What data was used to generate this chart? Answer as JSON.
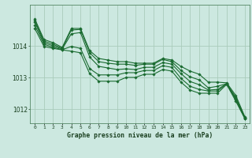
{
  "title": "Graphe pression niveau de la mer (hPa)",
  "bg_color": "#cce8e0",
  "grid_color": "#aaccbb",
  "line_color": "#1a6b30",
  "xlim": [
    -0.5,
    23.5
  ],
  "ylim": [
    1011.55,
    1015.3
  ],
  "yticks": [
    1012,
    1013,
    1014
  ],
  "xtick_labels": [
    "0",
    "1",
    "2",
    "3",
    "4",
    "5",
    "6",
    "7",
    "8",
    "9",
    "10",
    "11",
    "12",
    "13",
    "14",
    "15",
    "16",
    "17",
    "18",
    "19",
    "20",
    "21",
    "22",
    "23"
  ],
  "series": [
    [
      1014.85,
      1014.2,
      1014.1,
      1013.95,
      1014.55,
      1014.55,
      1013.85,
      1013.6,
      1013.55,
      1013.5,
      1013.5,
      1013.45,
      1013.45,
      1013.45,
      1013.6,
      1013.55,
      1013.35,
      1013.2,
      1013.1,
      1012.85,
      1012.85,
      1012.83,
      1012.43,
      1011.75
    ],
    [
      1014.8,
      1014.15,
      1014.05,
      1013.92,
      1014.5,
      1014.52,
      1013.78,
      1013.5,
      1013.45,
      1013.42,
      1013.42,
      1013.38,
      1013.42,
      1013.42,
      1013.57,
      1013.5,
      1013.22,
      1013.02,
      1012.92,
      1012.67,
      1012.72,
      1012.8,
      1012.37,
      1011.73
    ],
    [
      1014.75,
      1014.1,
      1014.0,
      1013.9,
      1014.38,
      1014.42,
      1013.65,
      1013.35,
      1013.3,
      1013.25,
      1013.27,
      1013.25,
      1013.32,
      1013.32,
      1013.47,
      1013.42,
      1013.12,
      1012.87,
      1012.77,
      1012.6,
      1012.62,
      1012.8,
      1012.32,
      1011.71
    ],
    [
      1014.65,
      1014.05,
      1013.95,
      1013.88,
      1013.98,
      1013.92,
      1013.28,
      1013.08,
      1013.08,
      1013.08,
      1013.15,
      1013.15,
      1013.22,
      1013.22,
      1013.37,
      1013.32,
      1012.97,
      1012.72,
      1012.62,
      1012.57,
      1012.57,
      1012.8,
      1012.3,
      1011.7
    ],
    [
      1014.55,
      1013.98,
      1013.92,
      1013.87,
      1013.83,
      1013.78,
      1013.12,
      1012.88,
      1012.88,
      1012.88,
      1013.0,
      1013.0,
      1013.1,
      1013.1,
      1013.25,
      1013.2,
      1012.85,
      1012.6,
      1012.5,
      1012.5,
      1012.5,
      1012.78,
      1012.25,
      1011.69
    ]
  ]
}
